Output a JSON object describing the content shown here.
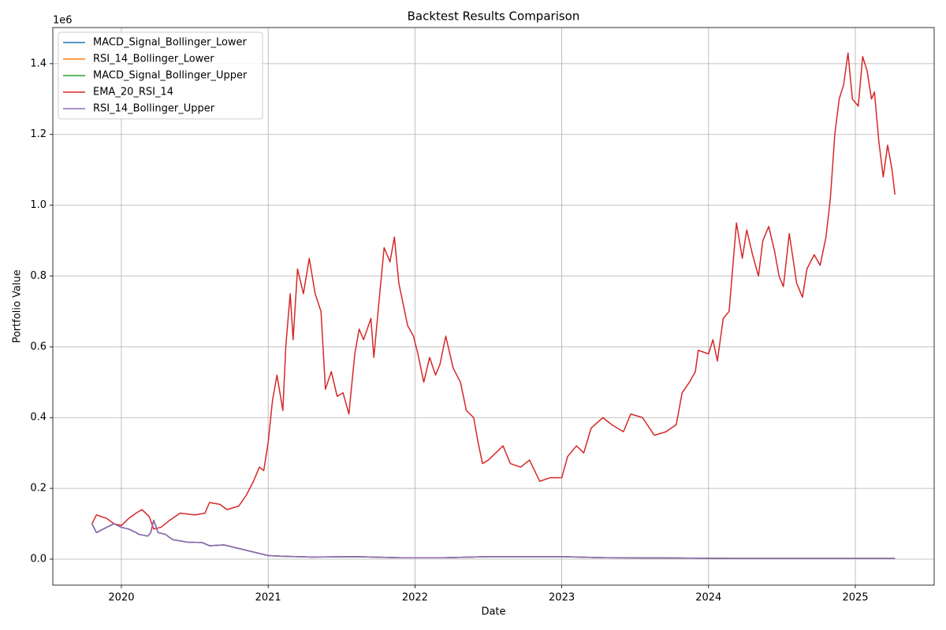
{
  "chart_data": {
    "type": "line",
    "title": "Backtest Results Comparison",
    "x_label": "Date",
    "y_label": "Portfolio Value",
    "y_offset_label": "1e6",
    "xlim": [
      2019.533,
      2025.537
    ],
    "xticks": [
      2020,
      2021,
      2022,
      2023,
      2024,
      2025
    ],
    "ylim": [
      -0.0734,
      1.502
    ],
    "yticks": [
      {
        "value": 0,
        "label": "0.0"
      },
      0.2,
      0.4,
      0.6,
      0.8,
      {
        "value": 1,
        "label": "1.0"
      },
      1.2,
      1.4
    ],
    "grid": true,
    "legend": "upper left",
    "series": [
      {
        "name": "MACD_Signal_Bollinger_Lower",
        "color": "#1f77b4",
        "x": [
          2019.8,
          2019.83,
          2019.9,
          2019.95,
          2020.0,
          2020.05,
          2020.1,
          2020.12,
          2020.18,
          2020.2,
          2020.22,
          2020.25,
          2020.3,
          2020.35,
          2020.45,
          2020.55,
          2020.6,
          2020.7,
          2020.8,
          2020.9,
          2021.0,
          2021.1,
          2021.3,
          2021.6,
          2021.9,
          2022.2,
          2022.5,
          2022.8,
          2023.0,
          2023.3,
          2023.8,
          2024.2,
          2024.8,
          2025.27
        ],
        "values": [
          0.1,
          0.075,
          0.09,
          0.1,
          0.09,
          0.085,
          0.075,
          0.07,
          0.065,
          0.075,
          0.11,
          0.075,
          0.07,
          0.055,
          0.048,
          0.047,
          0.038,
          0.04,
          0.03,
          0.02,
          0.01,
          0.008,
          0.006,
          0.007,
          0.004,
          0.004,
          0.007,
          0.007,
          0.007,
          0.004,
          0.003,
          0.002,
          0.002,
          0.002
        ]
      },
      {
        "name": "RSI_14_Bollinger_Lower",
        "color": "#ff7f0e",
        "x": [
          2019.8,
          2019.83,
          2019.9,
          2019.95,
          2020.0,
          2020.05,
          2020.1,
          2020.12,
          2020.18,
          2020.2,
          2020.22,
          2020.25,
          2020.3,
          2020.35,
          2020.45,
          2020.55,
          2020.6,
          2020.7,
          2020.8,
          2020.9,
          2021.0,
          2021.1,
          2021.3,
          2021.6,
          2021.9,
          2022.2,
          2022.5,
          2022.8,
          2023.0,
          2023.3,
          2023.8,
          2024.2,
          2024.8,
          2025.27
        ],
        "values": [
          0.1,
          0.075,
          0.09,
          0.1,
          0.09,
          0.085,
          0.075,
          0.07,
          0.065,
          0.075,
          0.11,
          0.075,
          0.07,
          0.055,
          0.048,
          0.047,
          0.038,
          0.04,
          0.03,
          0.02,
          0.01,
          0.008,
          0.006,
          0.007,
          0.004,
          0.004,
          0.007,
          0.007,
          0.007,
          0.004,
          0.003,
          0.002,
          0.002,
          0.002
        ]
      },
      {
        "name": "MACD_Signal_Bollinger_Upper",
        "color": "#2ca02c",
        "x": [
          2019.8,
          2019.83,
          2019.9,
          2019.95,
          2020.0,
          2020.05,
          2020.1,
          2020.12,
          2020.18,
          2020.2,
          2020.22,
          2020.25,
          2020.3,
          2020.35,
          2020.45,
          2020.55,
          2020.6,
          2020.7,
          2020.8,
          2020.9,
          2021.0,
          2021.1,
          2021.3,
          2021.6,
          2021.9,
          2022.2,
          2022.5,
          2022.8,
          2023.0,
          2023.3,
          2023.8,
          2024.2,
          2024.8,
          2025.27
        ],
        "values": [
          0.1,
          0.075,
          0.09,
          0.1,
          0.09,
          0.085,
          0.075,
          0.07,
          0.065,
          0.075,
          0.11,
          0.075,
          0.07,
          0.055,
          0.048,
          0.047,
          0.038,
          0.04,
          0.03,
          0.02,
          0.01,
          0.008,
          0.006,
          0.007,
          0.004,
          0.004,
          0.007,
          0.007,
          0.007,
          0.004,
          0.003,
          0.002,
          0.002,
          0.002
        ]
      },
      {
        "name": "EMA_20_RSI_14",
        "color": "#d62728",
        "x": [
          2019.8,
          2019.83,
          2019.9,
          2019.95,
          2020.0,
          2020.05,
          2020.1,
          2020.14,
          2020.19,
          2020.22,
          2020.27,
          2020.33,
          2020.4,
          2020.5,
          2020.57,
          2020.6,
          2020.67,
          2020.72,
          2020.8,
          2020.85,
          2020.9,
          2020.94,
          2020.97,
          2021.0,
          2021.03,
          2021.06,
          2021.1,
          2021.12,
          2021.15,
          2021.17,
          2021.2,
          2021.24,
          2021.28,
          2021.32,
          2021.36,
          2021.39,
          2021.43,
          2021.47,
          2021.51,
          2021.55,
          2021.59,
          2021.62,
          2021.65,
          2021.7,
          2021.72,
          2021.76,
          2021.79,
          2021.83,
          2021.86,
          2021.89,
          2021.92,
          2021.95,
          2021.99,
          2022.02,
          2022.06,
          2022.1,
          2022.14,
          2022.17,
          2022.21,
          2022.26,
          2022.31,
          2022.35,
          2022.4,
          2022.43,
          2022.46,
          2022.5,
          2022.55,
          2022.6,
          2022.65,
          2022.72,
          2022.78,
          2022.85,
          2022.92,
          2023.0,
          2023.04,
          2023.1,
          2023.15,
          2023.2,
          2023.28,
          2023.34,
          2023.42,
          2023.47,
          2023.55,
          2023.63,
          2023.71,
          2023.78,
          2023.82,
          2023.87,
          2023.91,
          2023.93,
          2024.0,
          2024.03,
          2024.06,
          2024.1,
          2024.14,
          2024.17,
          2024.19,
          2024.23,
          2024.26,
          2024.3,
          2024.34,
          2024.37,
          2024.41,
          2024.45,
          2024.48,
          2024.51,
          2024.55,
          2024.6,
          2024.64,
          2024.67,
          2024.72,
          2024.76,
          2024.8,
          2024.83,
          2024.86,
          2024.89,
          2024.92,
          2024.95,
          2024.98,
          2025.02,
          2025.05,
          2025.08,
          2025.11,
          2025.13,
          2025.16,
          2025.19,
          2025.22,
          2025.25,
          2025.27
        ],
        "values": [
          0.1,
          0.125,
          0.115,
          0.1,
          0.095,
          0.115,
          0.13,
          0.14,
          0.12,
          0.085,
          0.09,
          0.11,
          0.13,
          0.125,
          0.13,
          0.16,
          0.155,
          0.14,
          0.15,
          0.18,
          0.22,
          0.26,
          0.25,
          0.33,
          0.45,
          0.52,
          0.42,
          0.6,
          0.75,
          0.62,
          0.82,
          0.75,
          0.85,
          0.75,
          0.7,
          0.48,
          0.53,
          0.46,
          0.47,
          0.41,
          0.58,
          0.65,
          0.62,
          0.68,
          0.57,
          0.75,
          0.88,
          0.84,
          0.91,
          0.78,
          0.72,
          0.66,
          0.63,
          0.58,
          0.5,
          0.57,
          0.52,
          0.55,
          0.63,
          0.54,
          0.5,
          0.42,
          0.4,
          0.33,
          0.27,
          0.28,
          0.3,
          0.32,
          0.27,
          0.26,
          0.28,
          0.22,
          0.23,
          0.23,
          0.29,
          0.32,
          0.3,
          0.37,
          0.4,
          0.38,
          0.36,
          0.41,
          0.4,
          0.35,
          0.36,
          0.38,
          0.47,
          0.5,
          0.53,
          0.59,
          0.58,
          0.62,
          0.56,
          0.68,
          0.7,
          0.85,
          0.95,
          0.85,
          0.93,
          0.86,
          0.8,
          0.9,
          0.94,
          0.87,
          0.8,
          0.77,
          0.92,
          0.78,
          0.74,
          0.82,
          0.86,
          0.83,
          0.91,
          1.02,
          1.2,
          1.3,
          1.34,
          1.43,
          1.3,
          1.28,
          1.42,
          1.38,
          1.3,
          1.32,
          1.18,
          1.08,
          1.17,
          1.1,
          1.03
        ]
      },
      {
        "name": "RSI_14_Bollinger_Upper",
        "color": "#9467bd",
        "x": [
          2019.8,
          2019.83,
          2019.9,
          2019.95,
          2020.0,
          2020.05,
          2020.1,
          2020.12,
          2020.18,
          2020.2,
          2020.22,
          2020.25,
          2020.3,
          2020.35,
          2020.45,
          2020.55,
          2020.6,
          2020.7,
          2020.8,
          2020.9,
          2021.0,
          2021.1,
          2021.3,
          2021.6,
          2021.9,
          2022.2,
          2022.5,
          2022.8,
          2023.0,
          2023.3,
          2023.8,
          2024.2,
          2024.8,
          2025.27
        ],
        "values": [
          0.1,
          0.075,
          0.09,
          0.1,
          0.09,
          0.085,
          0.075,
          0.07,
          0.065,
          0.075,
          0.11,
          0.075,
          0.07,
          0.055,
          0.048,
          0.047,
          0.038,
          0.04,
          0.03,
          0.02,
          0.01,
          0.008,
          0.006,
          0.007,
          0.004,
          0.004,
          0.007,
          0.007,
          0.007,
          0.004,
          0.003,
          0.002,
          0.002,
          0.002
        ]
      }
    ]
  }
}
